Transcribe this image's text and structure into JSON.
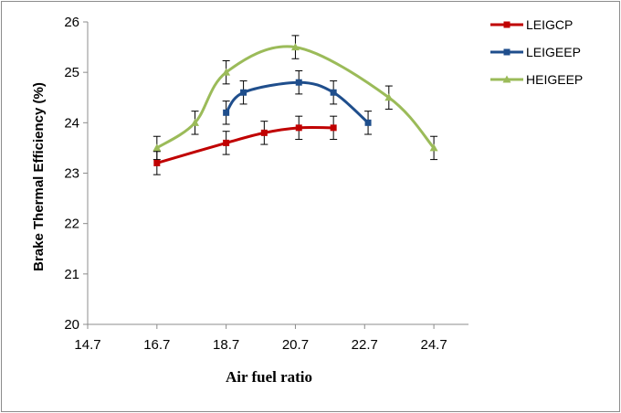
{
  "chart_data": {
    "type": "line",
    "title": "",
    "xlabel": "Air fuel ratio",
    "ylabel": "Brake Thermal Efficiency (%)",
    "xlim": [
      14.7,
      25.7
    ],
    "ylim": [
      20,
      26
    ],
    "xticks": [
      "14.7",
      "16.7",
      "18.7",
      "20.7",
      "22.7",
      "24.7"
    ],
    "yticks": [
      "20",
      "21",
      "22",
      "23",
      "24",
      "25",
      "26"
    ],
    "grid": false,
    "legend_position": "right",
    "error_bar": 0.23,
    "series": [
      {
        "name": "LEIGCP",
        "color": "#c00000",
        "marker": "square",
        "x": [
          16.7,
          18.7,
          19.8,
          20.8,
          21.8
        ],
        "y": [
          23.2,
          23.6,
          23.8,
          23.9,
          23.9
        ]
      },
      {
        "name": "LEIGEEP",
        "color": "#1f4e8c",
        "marker": "square",
        "x": [
          18.7,
          19.2,
          20.8,
          21.8,
          22.8
        ],
        "y": [
          24.2,
          24.6,
          24.8,
          24.6,
          24.0
        ]
      },
      {
        "name": "HEIGEEP",
        "color": "#9bbb59",
        "marker": "triangle",
        "x": [
          16.7,
          17.8,
          18.7,
          20.7,
          23.4,
          24.7
        ],
        "y": [
          23.5,
          24.0,
          25.0,
          25.5,
          24.5,
          23.5
        ]
      }
    ]
  }
}
